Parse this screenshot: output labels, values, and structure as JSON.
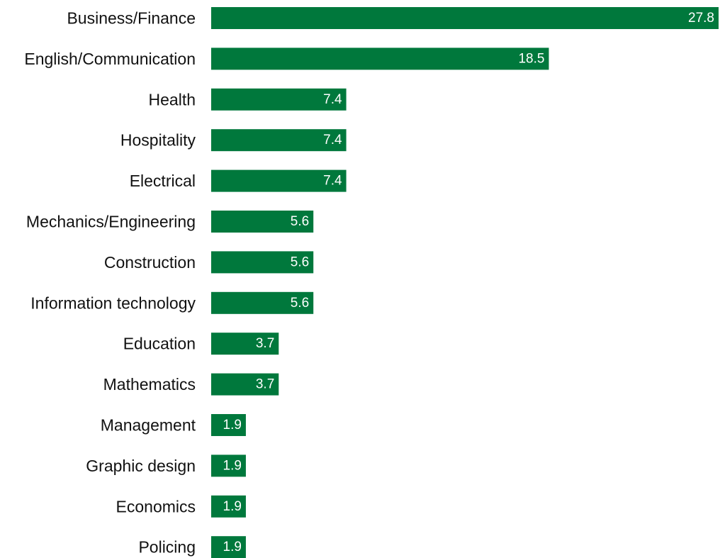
{
  "chart_data": {
    "type": "bar",
    "orientation": "horizontal",
    "categories": [
      "Business/Finance",
      "English/Communication",
      "Health",
      "Hospitality",
      "Electrical",
      "Mechanics/Engineering",
      "Construction",
      "Information technology",
      "Education",
      "Mathematics",
      "Management",
      "Graphic design",
      "Economics",
      "Policing"
    ],
    "values": [
      27.8,
      18.5,
      7.4,
      7.4,
      7.4,
      5.6,
      5.6,
      5.6,
      3.7,
      3.7,
      1.9,
      1.9,
      1.9,
      1.9
    ],
    "value_labels": [
      "27.8",
      "18.5",
      "7.4",
      "7.4",
      "7.4",
      "5.6",
      "5.6",
      "5.6",
      "3.7",
      "3.7",
      "1.9",
      "1.9",
      "1.9",
      "1.9"
    ],
    "xlim": [
      0,
      27.8
    ],
    "grid": false,
    "legend": "none",
    "bar_color": "#00783c",
    "value_label_color": "#ffffff"
  }
}
